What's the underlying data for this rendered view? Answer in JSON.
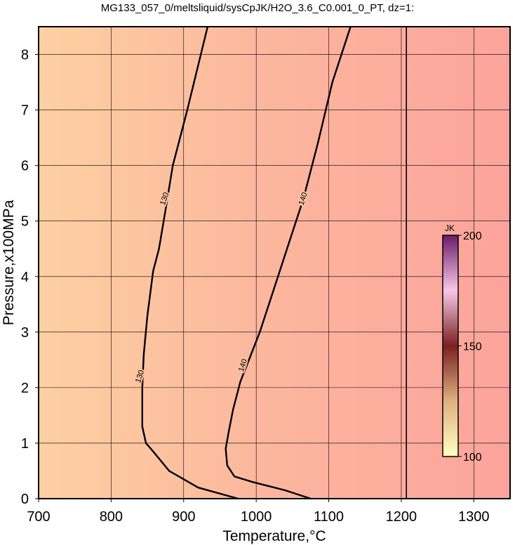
{
  "chart_data": {
    "type": "contour",
    "title": "MG133_057_0/meltsliquid/sysCpJK/H2O_3.6_C0.001_0_PT, dz=1:",
    "xlabel": "Temperature,°C",
    "ylabel": "Pressure,x100MPa",
    "xlim": [
      700,
      1350
    ],
    "ylim": [
      0,
      8.5
    ],
    "xticks": [
      700,
      800,
      900,
      1000,
      1100,
      1200,
      1300
    ],
    "yticks": [
      0,
      1,
      2,
      3,
      4,
      5,
      6,
      7,
      8
    ],
    "grid": true,
    "contours": [
      {
        "level": 130,
        "x": [
          933,
          905,
          885,
          875,
          866,
          858,
          850,
          845,
          843,
          843,
          848,
          858,
          880,
          920,
          975
        ],
        "y": [
          8.5,
          7,
          6,
          5.2,
          4.5,
          4.1,
          3.3,
          2.6,
          2,
          1.3,
          1.0,
          0.85,
          0.5,
          0.2,
          0
        ],
        "label_points": [
          [
            874,
            5.4
          ],
          [
            840,
            2.2
          ]
        ]
      },
      {
        "level": 140,
        "x": [
          1130,
          1105,
          1085,
          1065,
          1045,
          1025,
          1005,
          990,
          978,
          968,
          962,
          958,
          960,
          970,
          995,
          1040,
          1075
        ],
        "y": [
          8.5,
          7.5,
          6.4,
          5.4,
          4.6,
          3.8,
          3.0,
          2.5,
          2.1,
          1.6,
          1.2,
          0.9,
          0.6,
          0.4,
          0.3,
          0.15,
          0
        ],
        "label_points": [
          [
            1065,
            5.4
          ],
          [
            982,
            2.4
          ]
        ]
      },
      {
        "x": [
          1207,
          1207
        ],
        "y": [
          0,
          8.5
        ]
      }
    ],
    "colorbar": {
      "label": "JK",
      "clim": [
        100,
        200
      ],
      "ticks": [
        100,
        150,
        200
      ]
    }
  }
}
